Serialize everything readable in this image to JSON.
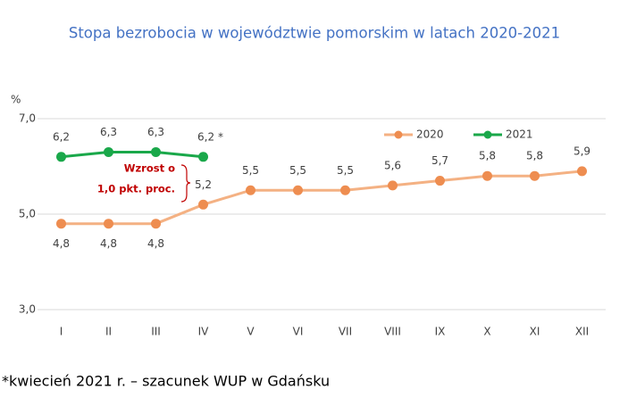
{
  "chart_data": {
    "type": "line",
    "title": "Stopa bezrobocia w województwie pomorskim w latach 2020-2021",
    "y_label": "%",
    "categories": [
      "I",
      "II",
      "III",
      "IV",
      "V",
      "VI",
      "VII",
      "VIII",
      "IX",
      "X",
      "XI",
      "XII"
    ],
    "series": [
      {
        "name": "2020",
        "color": "#f4b183",
        "marker_color": "#ee8d50",
        "values": [
          4.8,
          4.8,
          4.8,
          5.2,
          5.5,
          5.5,
          5.5,
          5.6,
          5.7,
          5.8,
          5.8,
          5.9
        ],
        "value_labels": [
          "4,8",
          "4,8",
          "4,8",
          "5,2",
          "5,5",
          "5,5",
          "5,5",
          "5,6",
          "5,7",
          "5,8",
          "5,8",
          "5,9"
        ]
      },
      {
        "name": "2021",
        "color": "#1aa84a",
        "marker_color": "#1aa84a",
        "values": [
          6.2,
          6.3,
          6.3,
          6.2,
          null,
          null,
          null,
          null,
          null,
          null,
          null,
          null
        ],
        "value_labels": [
          "6,2",
          "6,3",
          "6,3",
          "6,2 *",
          null,
          null,
          null,
          null,
          null,
          null,
          null,
          null
        ]
      }
    ],
    "ylim": [
      3,
      7
    ],
    "yticks": [
      {
        "value": 3,
        "label": "3,0"
      },
      {
        "value": 5,
        "label": "5,0"
      },
      {
        "value": 7,
        "label": "7,0"
      }
    ],
    "grid": true,
    "legend": "top-right",
    "annotation": [
      "Wzrost o",
      "1,0 pkt. proc."
    ],
    "footnote": "*kwiecień 2021 r. – szacunek WUP w Gdańsku"
  }
}
